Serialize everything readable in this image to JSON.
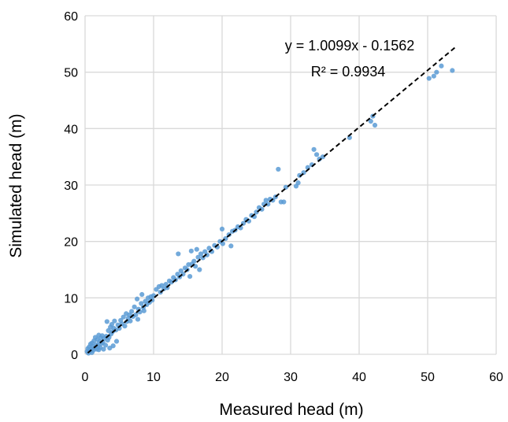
{
  "chart_data": {
    "type": "scatter",
    "title": "",
    "xlabel": "Measured head (m)",
    "ylabel": "Simulated head (m)",
    "xlim": [
      0,
      60
    ],
    "ylim": [
      0,
      60
    ],
    "x_ticks": [
      "0",
      "10",
      "20",
      "30",
      "40",
      "50",
      "60"
    ],
    "y_ticks": [
      "0",
      "10",
      "20",
      "30",
      "40",
      "50",
      "60"
    ],
    "grid": true,
    "point_color": "#5b9bd5",
    "trendline": {
      "slope": 1.0099,
      "intercept": -0.1562,
      "x_range": [
        0.4,
        54
      ],
      "style": "dashed",
      "color": "#000000"
    },
    "annotations": {
      "equation": "y = 1.0099x - 0.1562",
      "r_squared": "R² = 0.9934"
    },
    "points": [
      [
        0.3,
        0.5
      ],
      [
        0.4,
        1.0
      ],
      [
        0.5,
        0.2
      ],
      [
        0.6,
        1.3
      ],
      [
        0.7,
        0.6
      ],
      [
        0.8,
        1.8
      ],
      [
        0.9,
        0.9
      ],
      [
        1.0,
        0.3
      ],
      [
        1.0,
        2.0
      ],
      [
        1.1,
        1.4
      ],
      [
        1.2,
        0.7
      ],
      [
        1.3,
        2.4
      ],
      [
        1.4,
        1.1
      ],
      [
        1.5,
        3.0
      ],
      [
        1.6,
        1.7
      ],
      [
        1.7,
        0.9
      ],
      [
        1.8,
        2.6
      ],
      [
        1.9,
        1.5
      ],
      [
        2.0,
        3.4
      ],
      [
        2.0,
        0.8
      ],
      [
        2.1,
        2.2
      ],
      [
        2.2,
        1.2
      ],
      [
        2.3,
        2.9
      ],
      [
        2.4,
        1.9
      ],
      [
        2.5,
        3.3
      ],
      [
        2.6,
        2.1
      ],
      [
        2.7,
        0.9
      ],
      [
        2.8,
        2.8
      ],
      [
        3.0,
        1.6
      ],
      [
        3.1,
        3.2
      ],
      [
        3.2,
        5.8
      ],
      [
        3.3,
        2.5
      ],
      [
        3.4,
        4.2
      ],
      [
        3.5,
        3.0
      ],
      [
        3.6,
        1.1
      ],
      [
        3.7,
        4.8
      ],
      [
        3.8,
        3.6
      ],
      [
        3.9,
        5.3
      ],
      [
        4.0,
        4.0
      ],
      [
        4.1,
        1.5
      ],
      [
        4.2,
        4.6
      ],
      [
        4.3,
        5.9
      ],
      [
        4.5,
        4.3
      ],
      [
        4.6,
        2.3
      ],
      [
        4.8,
        5.2
      ],
      [
        5.0,
        4.6
      ],
      [
        5.2,
        6.0
      ],
      [
        5.4,
        5.4
      ],
      [
        5.6,
        6.6
      ],
      [
        5.8,
        5.0
      ],
      [
        6.0,
        7.2
      ],
      [
        6.1,
        5.8
      ],
      [
        6.3,
        6.4
      ],
      [
        6.5,
        7.0
      ],
      [
        6.6,
        5.9
      ],
      [
        6.8,
        7.6
      ],
      [
        7.0,
        6.7
      ],
      [
        7.2,
        8.4
      ],
      [
        7.4,
        7.0
      ],
      [
        7.6,
        9.8
      ],
      [
        7.7,
        6.2
      ],
      [
        7.8,
        8.0
      ],
      [
        8.0,
        7.5
      ],
      [
        8.2,
        9.0
      ],
      [
        8.3,
        10.6
      ],
      [
        8.5,
        8.3
      ],
      [
        8.6,
        7.7
      ],
      [
        8.8,
        9.4
      ],
      [
        9.0,
        8.8
      ],
      [
        9.2,
        10.0
      ],
      [
        9.4,
        9.2
      ],
      [
        9.6,
        10.2
      ],
      [
        9.8,
        9.6
      ],
      [
        10.0,
        10.4
      ],
      [
        10.4,
        11.5
      ],
      [
        10.8,
        12.0
      ],
      [
        11.0,
        11.0
      ],
      [
        11.2,
        12.2
      ],
      [
        11.5,
        11.6
      ],
      [
        11.8,
        12.4
      ],
      [
        12.0,
        11.8
      ],
      [
        12.3,
        13.0
      ],
      [
        12.6,
        12.8
      ],
      [
        12.9,
        13.6
      ],
      [
        13.2,
        13.2
      ],
      [
        13.5,
        14.2
      ],
      [
        13.6,
        17.8
      ],
      [
        13.8,
        13.7
      ],
      [
        14.0,
        14.8
      ],
      [
        14.3,
        14.2
      ],
      [
        14.6,
        15.3
      ],
      [
        14.9,
        15.0
      ],
      [
        15.1,
        15.9
      ],
      [
        15.3,
        13.8
      ],
      [
        15.5,
        18.3
      ],
      [
        15.6,
        16.0
      ],
      [
        15.9,
        16.5
      ],
      [
        16.1,
        15.6
      ],
      [
        16.3,
        18.6
      ],
      [
        16.5,
        17.2
      ],
      [
        16.7,
        15.0
      ],
      [
        16.9,
        17.8
      ],
      [
        17.2,
        17.1
      ],
      [
        17.5,
        18.2
      ],
      [
        17.8,
        17.6
      ],
      [
        18.1,
        18.8
      ],
      [
        18.5,
        18.2
      ],
      [
        18.9,
        19.3
      ],
      [
        19.3,
        19.0
      ],
      [
        19.7,
        20.0
      ],
      [
        20.0,
        22.2
      ],
      [
        20.1,
        19.6
      ],
      [
        20.5,
        20.5
      ],
      [
        21.0,
        21.2
      ],
      [
        21.3,
        19.2
      ],
      [
        21.5,
        21.8
      ],
      [
        21.9,
        22.0
      ],
      [
        22.3,
        22.6
      ],
      [
        22.7,
        22.4
      ],
      [
        23.1,
        23.2
      ],
      [
        23.5,
        23.9
      ],
      [
        23.9,
        23.6
      ],
      [
        24.3,
        24.6
      ],
      [
        24.7,
        24.4
      ],
      [
        25.0,
        25.2
      ],
      [
        25.4,
        26.0
      ],
      [
        25.8,
        25.7
      ],
      [
        26.1,
        26.6
      ],
      [
        26.4,
        27.3
      ],
      [
        26.7,
        26.6
      ],
      [
        27.0,
        27.5
      ],
      [
        27.4,
        27.3
      ],
      [
        27.8,
        27.9
      ],
      [
        28.2,
        32.8
      ],
      [
        28.6,
        27.0
      ],
      [
        29.0,
        27.0
      ],
      [
        29.3,
        29.6
      ],
      [
        30.8,
        29.8
      ],
      [
        31.1,
        30.4
      ],
      [
        31.3,
        31.7
      ],
      [
        31.9,
        32.2
      ],
      [
        32.5,
        33.1
      ],
      [
        33.1,
        33.6
      ],
      [
        33.4,
        36.3
      ],
      [
        33.8,
        35.4
      ],
      [
        34.2,
        34.6
      ],
      [
        34.7,
        35.0
      ],
      [
        38.6,
        38.4
      ],
      [
        41.7,
        41.3
      ],
      [
        42.0,
        42.2
      ],
      [
        42.3,
        40.6
      ],
      [
        50.2,
        48.9
      ],
      [
        50.9,
        49.3
      ],
      [
        51.3,
        50.0
      ],
      [
        52.0,
        51.1
      ],
      [
        53.6,
        50.3
      ]
    ]
  }
}
